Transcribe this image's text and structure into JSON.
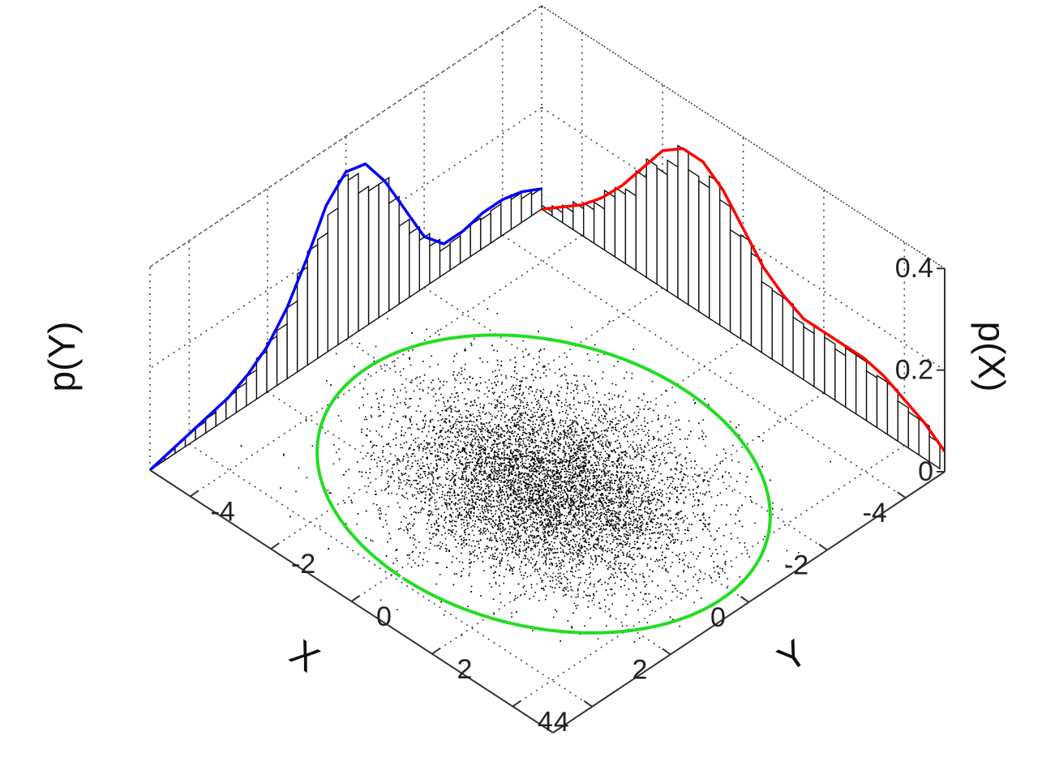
{
  "chart_data": {
    "type": "scatter",
    "title": "",
    "xlabel": "X",
    "ylabel": "Y",
    "zlabel_left": "p(Y)",
    "zlabel_right": "p(X)",
    "x_range": [
      -5,
      5
    ],
    "y_range": [
      -5,
      5
    ],
    "z_range": [
      0,
      0.4
    ],
    "x_ticks": [
      "-4",
      "-2",
      "0",
      "2",
      "4"
    ],
    "y_ticks": [
      "-4",
      "-2",
      "0",
      "2",
      "4"
    ],
    "z_ticks": [
      "0",
      "0.2",
      "0.4"
    ],
    "x_tick_values": [
      -4,
      -2,
      0,
      2,
      4
    ],
    "y_tick_values": [
      -4,
      -2,
      0,
      2,
      4
    ],
    "z_tick_values": [
      0,
      0.2,
      0.4
    ],
    "grid": true,
    "marginal_pY": {
      "color": "#ff0000",
      "y": [
        -5,
        -4.5,
        -4,
        -3.5,
        -3,
        -2.5,
        -2,
        -1.5,
        -1,
        -0.5,
        0,
        0.5,
        1,
        1.5,
        2,
        2.5,
        3,
        3.5,
        4,
        4.5,
        5
      ],
      "density": [
        0.0,
        0.03,
        0.06,
        0.1,
        0.15,
        0.21,
        0.27,
        0.3,
        0.3,
        0.27,
        0.22,
        0.17,
        0.14,
        0.12,
        0.12,
        0.12,
        0.12,
        0.11,
        0.09,
        0.07,
        0.04
      ]
    },
    "marginal_pX": {
      "color": "#0000ff",
      "x": [
        -5,
        -4.5,
        -4,
        -3.5,
        -3,
        -2.5,
        -2,
        -1.5,
        -1,
        -0.5,
        0,
        0.5,
        1,
        1.5,
        2,
        2.5,
        3,
        3.5,
        4,
        4.5,
        5
      ],
      "density": [
        0.04,
        0.06,
        0.07,
        0.07,
        0.06,
        0.06,
        0.1,
        0.18,
        0.26,
        0.32,
        0.33,
        0.29,
        0.21,
        0.14,
        0.09,
        0.06,
        0.04,
        0.03,
        0.02,
        0.01,
        0.0
      ]
    },
    "scatter": {
      "color": "#000000",
      "n_points": 9000,
      "x_center": 0.3,
      "y_center": 0.2,
      "x_sd": 1.2,
      "y_sd": 1.5
    },
    "ellipse": {
      "color": "#22dd22",
      "center": [
        0.3,
        0.2
      ],
      "x_radius": 3.6,
      "y_radius": 4.4,
      "rotation_deg": 0
    }
  }
}
